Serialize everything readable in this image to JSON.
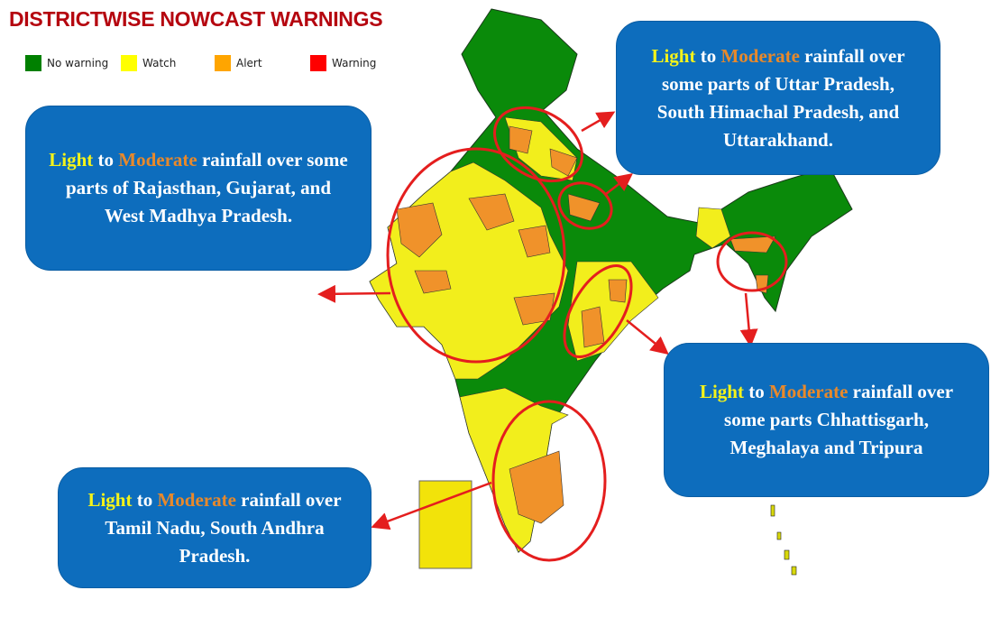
{
  "title": "DISTRICTWISE NOWCAST WARNINGS",
  "legend": [
    {
      "label": "No warning",
      "color": "#008000"
    },
    {
      "label": "Watch",
      "color": "#ffff00"
    },
    {
      "label": "Alert",
      "color": "#ffa500"
    },
    {
      "label": "Warning",
      "color": "#ff0000"
    }
  ],
  "callouts": [
    {
      "light": "Light",
      "to": " to ",
      "moderate": "Moderate",
      "rest": " rainfall over some parts of Rajasthan, Gujarat, and West Madhya Pradesh."
    },
    {
      "light": "Light",
      "to": " to ",
      "moderate": "Moderate",
      "rest": " rainfall over some parts of Uttar Pradesh, South Himachal Pradesh, and Uttarakhand."
    },
    {
      "light": "Light",
      "to": " to ",
      "moderate": "Moderate",
      "rest": " rainfall over some parts Chhattisgarh, Meghalaya and Tripura"
    },
    {
      "light": "Light",
      "to": " to ",
      "moderate": "Moderate",
      "rest": " rainfall over Tamil Nadu, South Andhra Pradesh."
    }
  ],
  "colors": {
    "callout_bg": "#0d6dbd",
    "highlight_ring": "#e41e1e",
    "light_text": "#f4f31a",
    "moderate_text": "#e8892b"
  }
}
